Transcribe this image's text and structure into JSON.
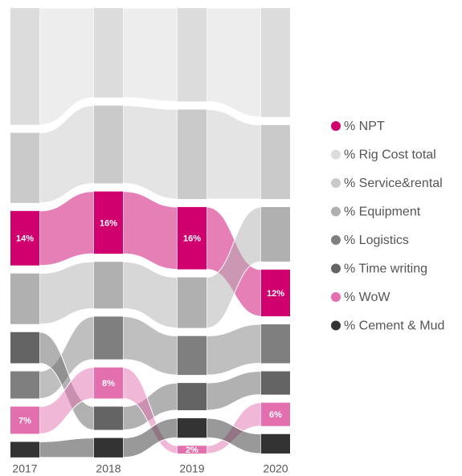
{
  "chart_data": {
    "type": "ribbon",
    "categories": [
      "2017",
      "2018",
      "2019",
      "2020"
    ],
    "series": [
      {
        "name": "% NPT",
        "color": "#d0006f",
        "values": [
          14,
          16,
          16,
          12
        ],
        "value_labels": [
          "14%",
          "16%",
          "16%",
          "12%"
        ]
      },
      {
        "name": "% Rig Cost total",
        "color": "#dcdcdc",
        "values": [
          30,
          23,
          24,
          28
        ]
      },
      {
        "name": "% Service&rental",
        "color": "#cacaca",
        "values": [
          18,
          20,
          23,
          19
        ]
      },
      {
        "name": "% Equipment",
        "color": "#b0b0b0",
        "values": [
          13,
          12,
          13,
          14
        ]
      },
      {
        "name": "% Logistics",
        "color": "#7f7f7f",
        "values": [
          7,
          11,
          10,
          10
        ]
      },
      {
        "name": "% Time writing",
        "color": "#646464",
        "values": [
          8,
          6,
          7,
          6
        ]
      },
      {
        "name": "% WoW",
        "color": "#e46fae",
        "values": [
          7,
          8,
          2,
          6
        ],
        "value_labels": [
          "7%",
          "8%",
          "2%",
          "6%"
        ]
      },
      {
        "name": "% Cement & Mud",
        "color": "#333333",
        "values": [
          4,
          5,
          5,
          5
        ]
      }
    ]
  }
}
